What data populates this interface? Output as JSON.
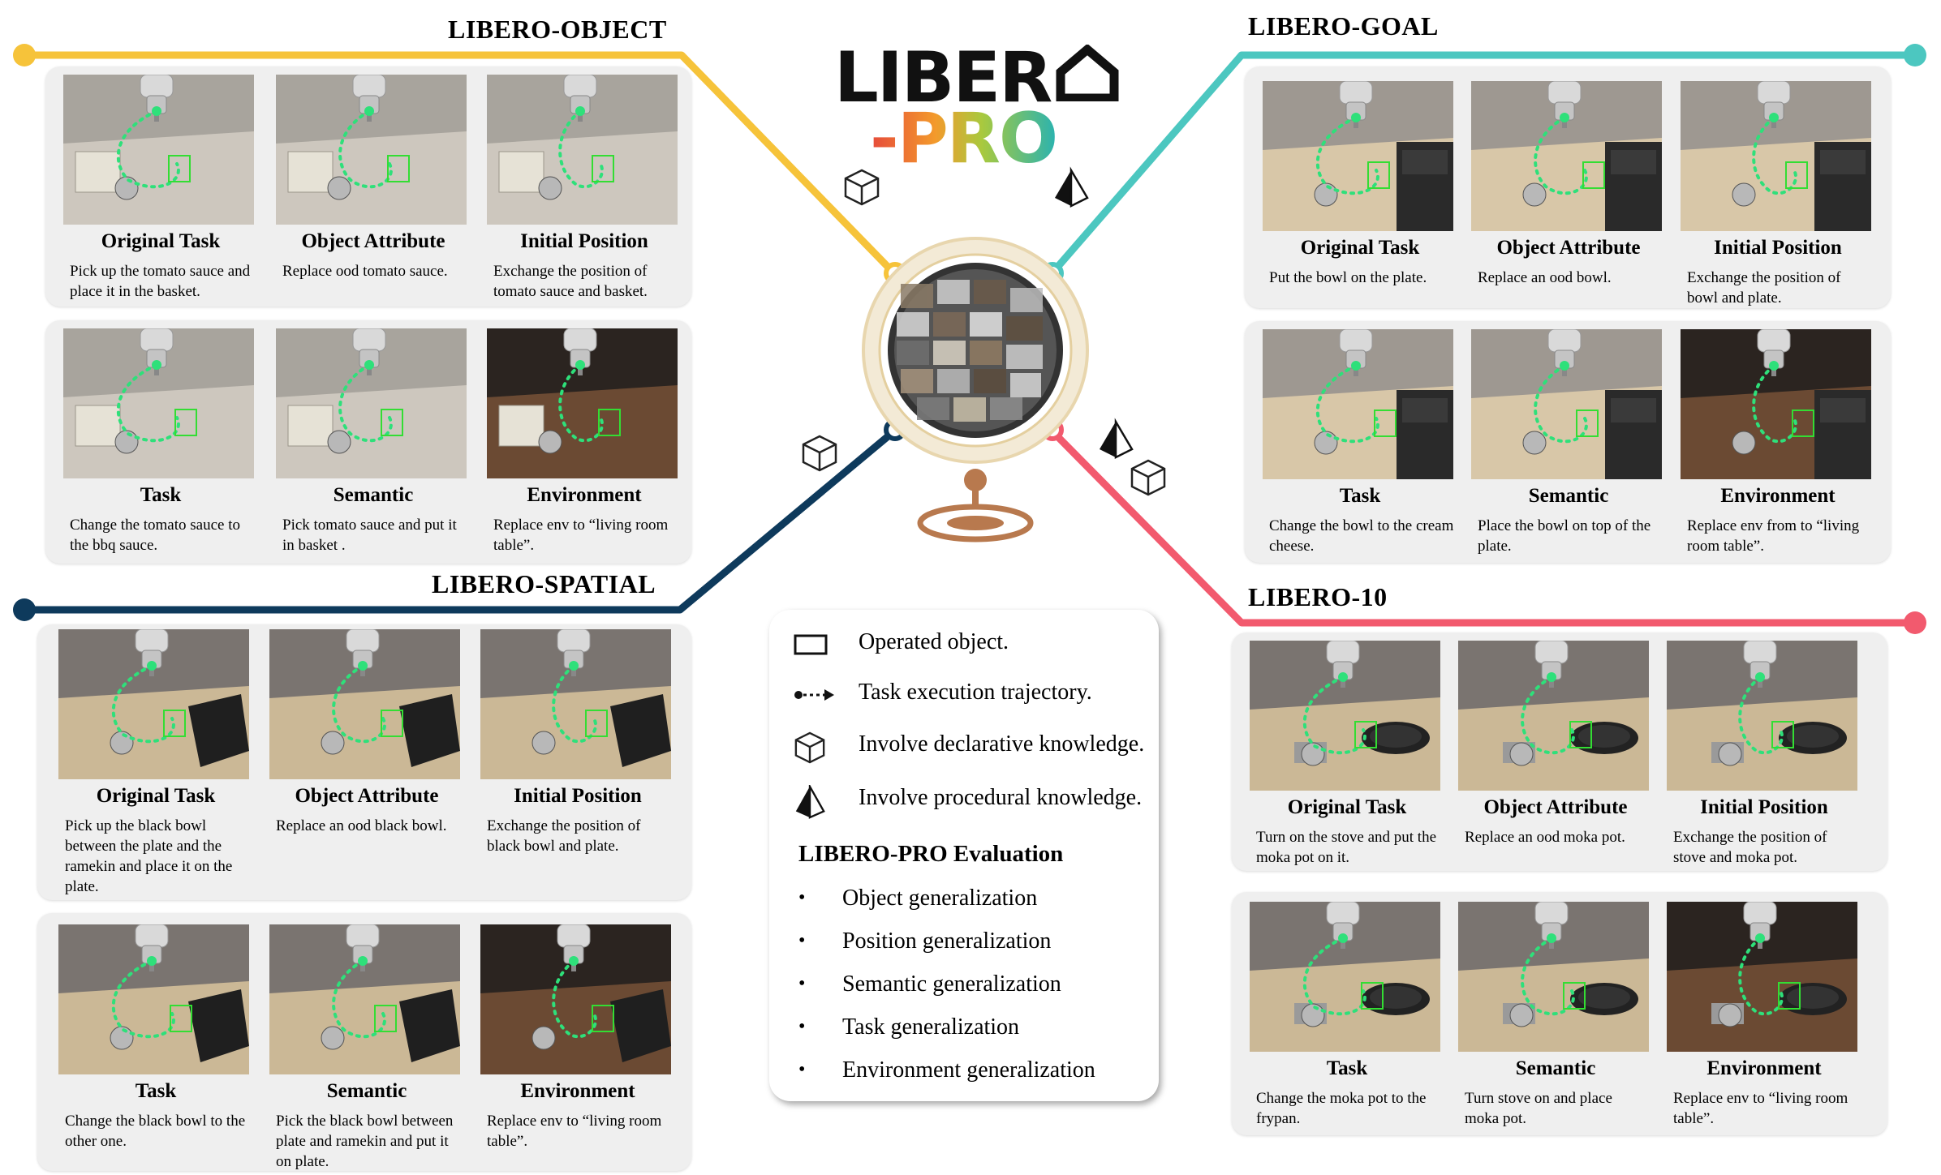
{
  "colors": {
    "object": "#f6c33a",
    "goal": "#4cc7c0",
    "spatial": "#0e3a5c",
    "ten": "#f25a6e",
    "box": "#33dd33",
    "traj": "#2ee07a"
  },
  "logo": {
    "line1": "LIBER",
    "line2": "-PRO"
  },
  "benchmarks": {
    "object": {
      "title": "LIBERO-OBJECT",
      "cards": [
        {
          "title": "Original Task",
          "desc": "Pick up the tomato sauce and place it in the basket."
        },
        {
          "title": "Object Attribute",
          "desc": "Replace ood tomato sauce."
        },
        {
          "title": "Initial Position",
          "desc": "Exchange the position of tomato sauce and basket."
        },
        {
          "title": "Task",
          "desc": "Change the tomato sauce to the bbq sauce."
        },
        {
          "title": "Semantic",
          "desc": "Pick tomato sauce and put it in basket ."
        },
        {
          "title": "Environment",
          "desc": "Replace env to “living room table”."
        }
      ]
    },
    "goal": {
      "title": "LIBERO-GOAL",
      "cards": [
        {
          "title": "Original Task",
          "desc": "Put the bowl on the plate."
        },
        {
          "title": "Object Attribute",
          "desc": "Replace an ood bowl."
        },
        {
          "title": "Initial Position",
          "desc": "Exchange the position of bowl and plate."
        },
        {
          "title": "Task",
          "desc": "Change the bowl to the cream cheese."
        },
        {
          "title": "Semantic",
          "desc": "Place the bowl on top of the plate."
        },
        {
          "title": "Environment",
          "desc": "Replace env from to “living room table”."
        }
      ]
    },
    "spatial": {
      "title": "LIBERO-SPATIAL",
      "cards": [
        {
          "title": "Original Task",
          "desc": "Pick up the black bowl between the plate and the ramekin and place it on the plate."
        },
        {
          "title": "Object Attribute",
          "desc": "Replace an ood black bowl."
        },
        {
          "title": "Initial Position",
          "desc": "Exchange the position of black bowl and plate."
        },
        {
          "title": "Task",
          "desc": "Change the black bowl to the other one."
        },
        {
          "title": "Semantic",
          "desc": "Pick the black bowl between plate and ramekin and put it on plate."
        },
        {
          "title": "Environment",
          "desc": "Replace env to “living room table”."
        }
      ]
    },
    "ten": {
      "title": "LIBERO-10",
      "cards": [
        {
          "title": "Original Task",
          "desc": "Turn on the stove and put the moka pot on it."
        },
        {
          "title": "Object Attribute",
          "desc": "Replace an ood moka pot."
        },
        {
          "title": "Initial Position",
          "desc": "Exchange the position of stove and moka pot."
        },
        {
          "title": "Task",
          "desc": "Change the moka pot to the frypan."
        },
        {
          "title": "Semantic",
          "desc": "Turn stove on and place moka pot."
        },
        {
          "title": "Environment",
          "desc": "Replace env to “living room table”."
        }
      ]
    }
  },
  "legend": {
    "operated": "Operated object.",
    "trajectory": "Task execution trajectory.",
    "declarative": "Involve declarative knowledge.",
    "procedural": "Involve procedural knowledge.",
    "eval_title": "LIBERO-PRO Evaluation",
    "eval_items": [
      "Object generalization",
      "Position generalization",
      "Semantic generalization",
      "Task generalization",
      "Environment generalization"
    ]
  }
}
